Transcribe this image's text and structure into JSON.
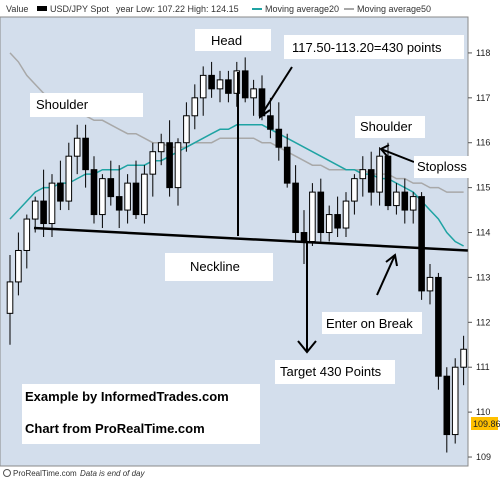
{
  "chart_data": {
    "type": "candlestick",
    "legend": {
      "value_label": "Value",
      "symbol": "USD/JPY Spot",
      "year_range": "year Low: 107.22 High: 124.15",
      "ma20_label": "Moving average20",
      "ma50_label": "Moving average50"
    },
    "y_ticks": [
      "118",
      "117",
      "116",
      "115",
      "114",
      "113",
      "112",
      "111",
      "110",
      "109"
    ],
    "ylim": [
      108.8,
      118.8
    ],
    "last_price": "109.86",
    "candles": [
      {
        "o": 112.2,
        "h": 113.5,
        "l": 111.5,
        "c": 112.9
      },
      {
        "o": 112.9,
        "h": 114.0,
        "l": 112.6,
        "c": 113.6
      },
      {
        "o": 113.6,
        "h": 114.4,
        "l": 113.2,
        "c": 114.3
      },
      {
        "o": 114.3,
        "h": 114.8,
        "l": 114.0,
        "c": 114.7
      },
      {
        "o": 114.7,
        "h": 115.4,
        "l": 113.9,
        "c": 114.2
      },
      {
        "o": 114.2,
        "h": 115.3,
        "l": 113.9,
        "c": 115.1
      },
      {
        "o": 115.1,
        "h": 115.6,
        "l": 114.5,
        "c": 114.7
      },
      {
        "o": 114.7,
        "h": 116.0,
        "l": 114.5,
        "c": 115.7
      },
      {
        "o": 115.7,
        "h": 116.4,
        "l": 115.3,
        "c": 116.1
      },
      {
        "o": 116.1,
        "h": 116.4,
        "l": 115.0,
        "c": 115.4
      },
      {
        "o": 115.4,
        "h": 115.7,
        "l": 114.2,
        "c": 114.4
      },
      {
        "o": 114.4,
        "h": 115.3,
        "l": 114.1,
        "c": 115.2
      },
      {
        "o": 115.2,
        "h": 115.6,
        "l": 114.6,
        "c": 114.8
      },
      {
        "o": 114.8,
        "h": 115.5,
        "l": 114.1,
        "c": 114.5
      },
      {
        "o": 114.5,
        "h": 115.3,
        "l": 114.2,
        "c": 115.1
      },
      {
        "o": 115.1,
        "h": 115.6,
        "l": 114.3,
        "c": 114.4
      },
      {
        "o": 114.4,
        "h": 115.5,
        "l": 114.2,
        "c": 115.3
      },
      {
        "o": 115.3,
        "h": 116.0,
        "l": 114.8,
        "c": 115.8
      },
      {
        "o": 115.8,
        "h": 116.2,
        "l": 115.5,
        "c": 116.0
      },
      {
        "o": 116.0,
        "h": 116.5,
        "l": 114.8,
        "c": 115.0
      },
      {
        "o": 115.0,
        "h": 116.1,
        "l": 114.6,
        "c": 116.0
      },
      {
        "o": 116.0,
        "h": 116.9,
        "l": 115.8,
        "c": 116.6
      },
      {
        "o": 116.6,
        "h": 117.3,
        "l": 116.3,
        "c": 117.0
      },
      {
        "o": 117.0,
        "h": 117.7,
        "l": 116.6,
        "c": 117.5
      },
      {
        "o": 117.5,
        "h": 117.8,
        "l": 117.0,
        "c": 117.2
      },
      {
        "o": 117.2,
        "h": 117.6,
        "l": 116.9,
        "c": 117.4
      },
      {
        "o": 117.4,
        "h": 117.6,
        "l": 116.9,
        "c": 117.1
      },
      {
        "o": 117.1,
        "h": 117.8,
        "l": 116.8,
        "c": 117.6
      },
      {
        "o": 117.6,
        "h": 117.9,
        "l": 116.9,
        "c": 117.0
      },
      {
        "o": 117.0,
        "h": 117.4,
        "l": 116.6,
        "c": 117.2
      },
      {
        "o": 117.2,
        "h": 117.5,
        "l": 116.5,
        "c": 116.6
      },
      {
        "o": 116.6,
        "h": 117.0,
        "l": 116.1,
        "c": 116.3
      },
      {
        "o": 116.3,
        "h": 116.9,
        "l": 115.6,
        "c": 115.9
      },
      {
        "o": 115.9,
        "h": 116.2,
        "l": 115.0,
        "c": 115.1
      },
      {
        "o": 115.1,
        "h": 115.5,
        "l": 113.8,
        "c": 114.0
      },
      {
        "o": 114.0,
        "h": 114.5,
        "l": 113.3,
        "c": 113.8
      },
      {
        "o": 113.8,
        "h": 115.1,
        "l": 113.7,
        "c": 114.9
      },
      {
        "o": 114.9,
        "h": 115.2,
        "l": 113.8,
        "c": 114.0
      },
      {
        "o": 114.0,
        "h": 114.6,
        "l": 113.8,
        "c": 114.4
      },
      {
        "o": 114.4,
        "h": 114.8,
        "l": 113.9,
        "c": 114.1
      },
      {
        "o": 114.1,
        "h": 114.9,
        "l": 113.9,
        "c": 114.7
      },
      {
        "o": 114.7,
        "h": 115.3,
        "l": 114.4,
        "c": 115.2
      },
      {
        "o": 115.2,
        "h": 115.7,
        "l": 114.8,
        "c": 115.4
      },
      {
        "o": 115.4,
        "h": 115.8,
        "l": 114.6,
        "c": 114.9
      },
      {
        "o": 114.9,
        "h": 115.9,
        "l": 114.6,
        "c": 115.7
      },
      {
        "o": 115.7,
        "h": 116.0,
        "l": 114.5,
        "c": 114.6
      },
      {
        "o": 114.6,
        "h": 115.1,
        "l": 114.4,
        "c": 114.9
      },
      {
        "o": 114.9,
        "h": 115.2,
        "l": 114.2,
        "c": 114.5
      },
      {
        "o": 114.5,
        "h": 114.9,
        "l": 114.2,
        "c": 114.8
      },
      {
        "o": 114.8,
        "h": 114.9,
        "l": 112.5,
        "c": 112.7
      },
      {
        "o": 112.7,
        "h": 113.3,
        "l": 112.4,
        "c": 113.0
      },
      {
        "o": 113.0,
        "h": 113.1,
        "l": 110.5,
        "c": 110.8
      },
      {
        "o": 110.8,
        "h": 111.0,
        "l": 109.1,
        "c": 109.5
      },
      {
        "o": 109.5,
        "h": 111.2,
        "l": 109.3,
        "c": 111.0
      },
      {
        "o": 111.0,
        "h": 111.7,
        "l": 110.6,
        "c": 111.4
      }
    ],
    "ma20": [
      114.3,
      114.5,
      114.7,
      114.9,
      115.0,
      115.0,
      115.1,
      115.1,
      115.2,
      115.3,
      115.3,
      115.4,
      115.4,
      115.4,
      115.5,
      115.5,
      115.5,
      115.6,
      115.6,
      115.7,
      115.8,
      115.9,
      116.0,
      116.1,
      116.2,
      116.3,
      116.3,
      116.4,
      116.4,
      116.4,
      116.4,
      116.3,
      116.2,
      116.1,
      116.0,
      115.9,
      115.8,
      115.7,
      115.6,
      115.5,
      115.4,
      115.4,
      115.3,
      115.3,
      115.2,
      115.2,
      115.1,
      115.0,
      114.9,
      114.7,
      114.5,
      114.3,
      114.0,
      113.8,
      113.7
    ],
    "ma50": [
      118.0,
      117.8,
      117.5,
      117.3,
      117.1,
      117.0,
      116.9,
      116.8,
      116.7,
      116.6,
      116.5,
      116.5,
      116.4,
      116.3,
      116.2,
      116.2,
      116.1,
      116.0,
      116.0,
      115.9,
      115.9,
      115.9,
      116.0,
      116.0,
      116.0,
      116.1,
      116.1,
      116.1,
      116.1,
      116.1,
      116.0,
      116.0,
      115.9,
      115.8,
      115.7,
      115.6,
      115.5,
      115.5,
      115.4,
      115.4,
      115.4,
      115.4,
      115.4,
      115.3,
      115.3,
      115.3,
      115.2,
      115.2,
      115.1,
      115.1,
      115.0,
      115.0,
      114.9,
      114.9,
      114.9
    ],
    "neckline": {
      "x": [
        0,
        54.5
      ],
      "y": [
        114.1,
        113.6
      ]
    },
    "annotations": {
      "head": "Head",
      "points": "117.50-113.20=430 points",
      "shoulder_left": "Shoulder",
      "shoulder_right": "Shoulder",
      "stoploss": "Stoploss",
      "neckline": "Neckline",
      "enter": "Enter on Break",
      "target": "Target 430 Points",
      "example": "Example by InformedTrades.com",
      "source": "Chart from ProRealTime.com"
    },
    "footer": {
      "brand": "ProRealTime.com",
      "note": "Data is end of day"
    },
    "colors": {
      "plot_bg": "#d3deec",
      "bull": "#ffffff",
      "bear": "#000000",
      "ma20": "#1fa3a3",
      "ma50": "#a8a8a8",
      "last_price_bg": "#ffc000"
    }
  }
}
